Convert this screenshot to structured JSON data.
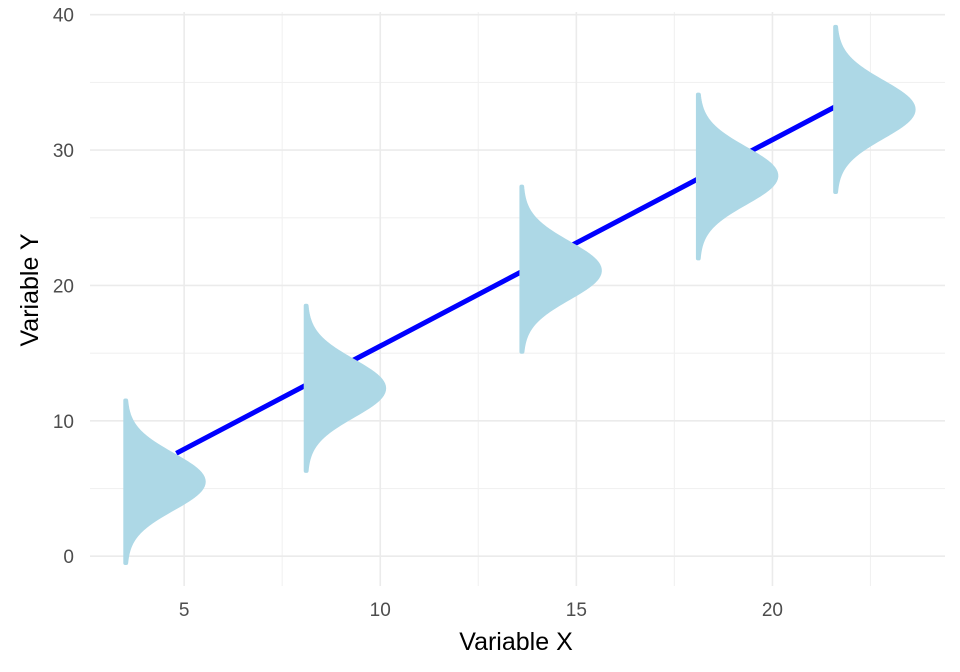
{
  "chart_data": {
    "type": "line",
    "title": "",
    "xlabel": "Variable X",
    "ylabel": "Variable Y",
    "xlim": [
      2.6,
      24.4
    ],
    "ylim": [
      -2.2,
      40.2
    ],
    "x_ticks": [
      5,
      10,
      15,
      20
    ],
    "x_tick_labels": [
      "5",
      "10",
      "15",
      "20"
    ],
    "y_ticks": [
      0,
      10,
      20,
      30,
      40
    ],
    "y_tick_labels": [
      "0",
      "10",
      "20",
      "30",
      "40"
    ],
    "grid": true,
    "series": [
      {
        "type": "line",
        "color": "#0000ff",
        "x": [
          4.8,
          21.6
        ],
        "y": [
          7.6,
          33.2
        ]
      },
      {
        "type": "half-violin",
        "color": "#add8e6",
        "distributions": [
          {
            "x": 3.5,
            "center": 5.5,
            "min": -0.5,
            "max": 11.5,
            "max_width": 2.0
          },
          {
            "x": 8.1,
            "center": 12.4,
            "min": 6.3,
            "max": 18.5,
            "max_width": 2.0
          },
          {
            "x": 13.6,
            "center": 21.1,
            "min": 15.1,
            "max": 27.3,
            "max_width": 2.0
          },
          {
            "x": 18.1,
            "center": 28.1,
            "min": 22.0,
            "max": 34.1,
            "max_width": 2.0
          },
          {
            "x": 21.6,
            "center": 33.0,
            "min": 26.9,
            "max": 39.1,
            "max_width": 2.0
          }
        ]
      }
    ]
  }
}
